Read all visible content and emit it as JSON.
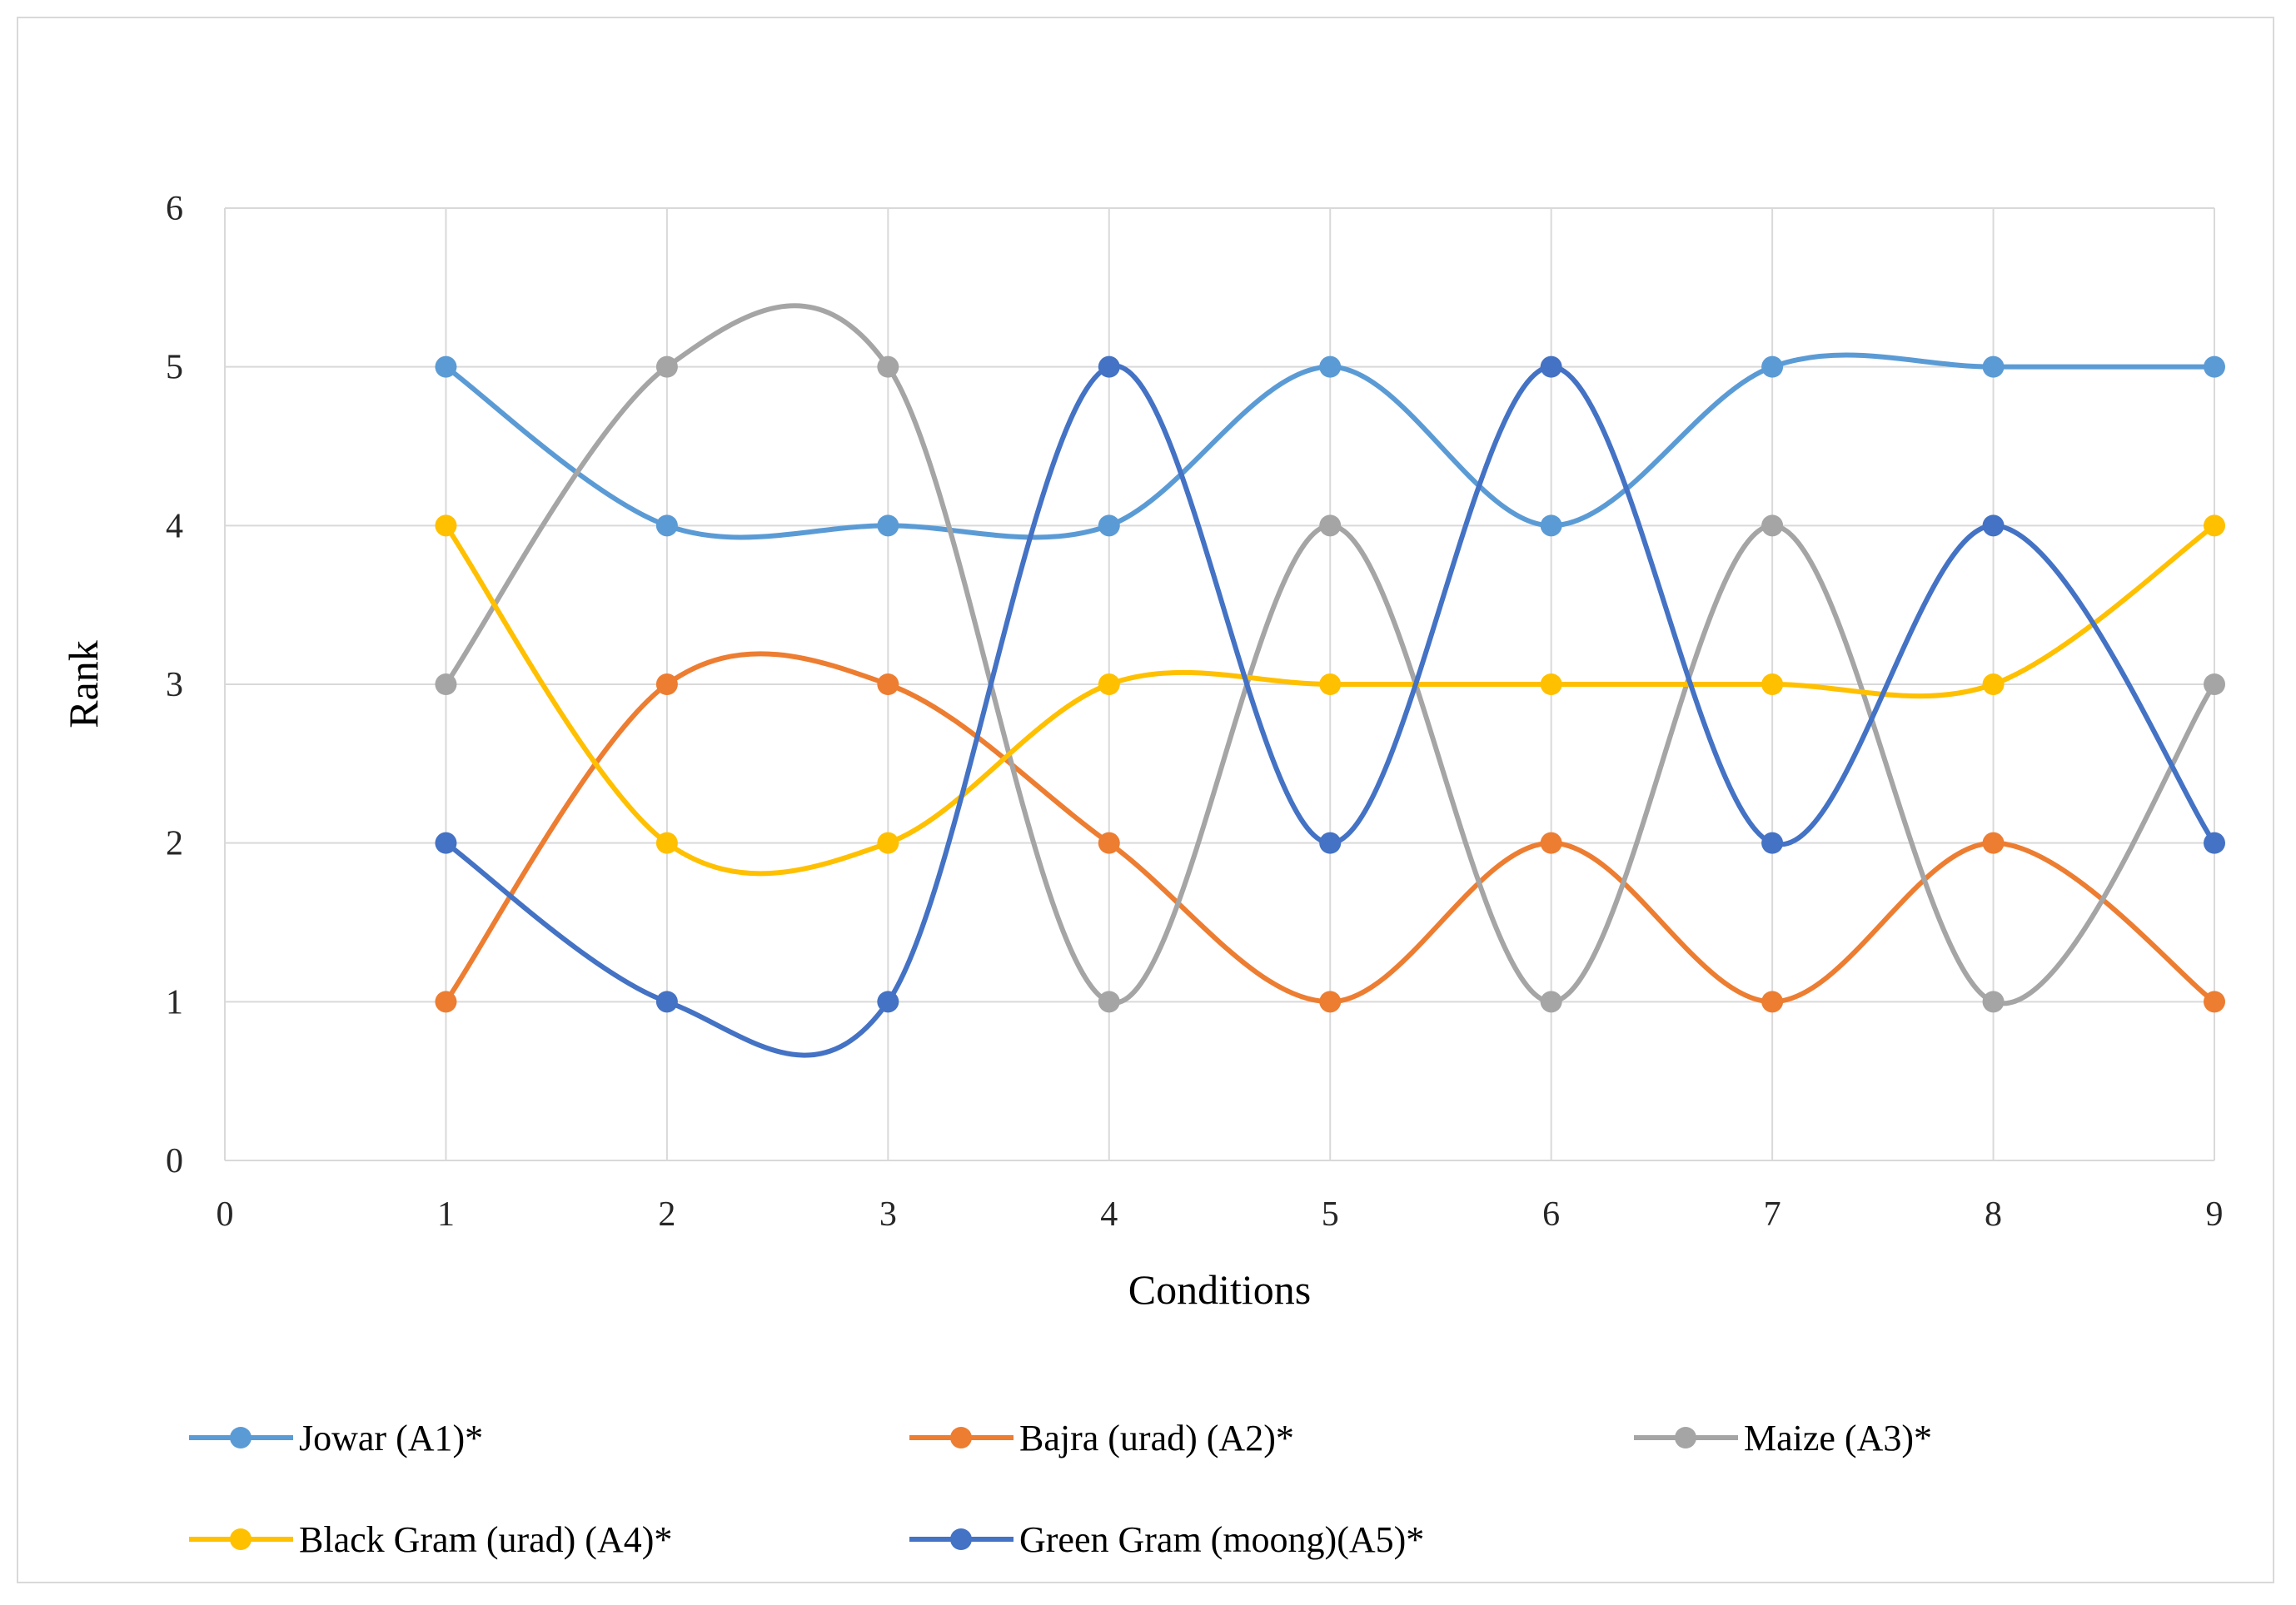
{
  "chart_data": {
    "type": "line",
    "xlabel": "Conditions",
    "ylabel": "Rank",
    "xlim": [
      0,
      9
    ],
    "ylim": [
      0,
      6
    ],
    "xticks": [
      0,
      1,
      2,
      3,
      4,
      5,
      6,
      7,
      8,
      9
    ],
    "yticks": [
      0,
      1,
      2,
      3,
      4,
      5,
      6
    ],
    "grid": true,
    "smooth": true,
    "legend_position": "bottom",
    "x": [
      1,
      2,
      3,
      4,
      5,
      6,
      7,
      8,
      9
    ],
    "series": [
      {
        "name": "Jowar (A1)*",
        "color": "#5B9BD5",
        "values": [
          5,
          4,
          4,
          4,
          5,
          4,
          5,
          5,
          5
        ]
      },
      {
        "name": "Bajra (urad) (A2)*",
        "color": "#ED7D31",
        "values": [
          1,
          3,
          3,
          2,
          1,
          2,
          1,
          2,
          1
        ]
      },
      {
        "name": "Maize (A3)*",
        "color": "#A5A5A5",
        "values": [
          3,
          5,
          5,
          1,
          4,
          1,
          4,
          1,
          3
        ]
      },
      {
        "name": "Black Gram (urad) (A4)*",
        "color": "#FFC000",
        "values": [
          4,
          2,
          2,
          3,
          3,
          3,
          3,
          3,
          4
        ]
      },
      {
        "name": "Green Gram (moong)(A5)*",
        "color": "#4472C4",
        "values": [
          2,
          1,
          1,
          5,
          2,
          5,
          2,
          4,
          2
        ]
      }
    ]
  }
}
